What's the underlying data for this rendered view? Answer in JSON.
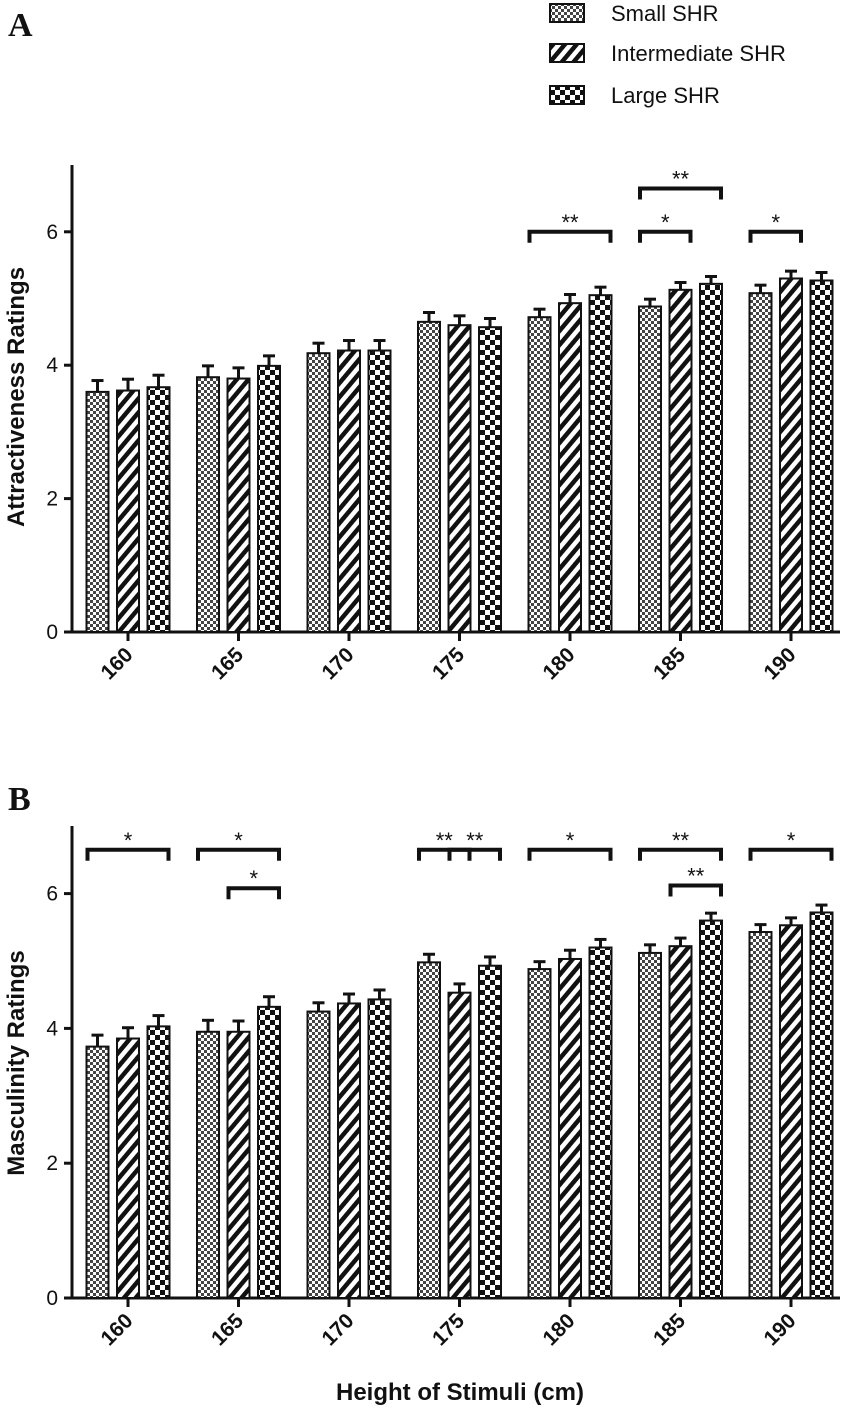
{
  "colors": {
    "ink": "#111111",
    "background": "#ffffff"
  },
  "chart_data": [
    {
      "type": "bar",
      "panel": "A",
      "title": "",
      "xlabel": "",
      "ylabel": "Attractiveness Ratings",
      "ylim": [
        0,
        7
      ],
      "yticks": [
        0,
        2,
        4,
        6
      ],
      "categories": [
        "160",
        "165",
        "170",
        "175",
        "180",
        "185",
        "190"
      ],
      "series": [
        {
          "name": "Small SHR",
          "pattern": "dots",
          "values": [
            3.6,
            3.82,
            4.18,
            4.65,
            4.72,
            4.88,
            5.08
          ],
          "errors": [
            0.17,
            0.17,
            0.15,
            0.14,
            0.12,
            0.11,
            0.12
          ]
        },
        {
          "name": "Intermediate SHR",
          "pattern": "stripes",
          "values": [
            3.62,
            3.8,
            4.22,
            4.6,
            4.93,
            5.13,
            5.3
          ],
          "errors": [
            0.17,
            0.16,
            0.15,
            0.14,
            0.13,
            0.11,
            0.11
          ]
        },
        {
          "name": "Large SHR",
          "pattern": "checks",
          "values": [
            3.67,
            3.99,
            4.22,
            4.57,
            5.05,
            5.22,
            5.27
          ],
          "errors": [
            0.18,
            0.15,
            0.15,
            0.13,
            0.12,
            0.11,
            0.12
          ]
        }
      ],
      "significance": [
        {
          "category": "180",
          "from": "Small SHR",
          "to": "Large SHR",
          "level": 6.0,
          "label": "**"
        },
        {
          "category": "185",
          "from": "Small SHR",
          "to": "Intermediate SHR",
          "level": 6.0,
          "label": "*"
        },
        {
          "category": "185",
          "from": "Small SHR",
          "to": "Large SHR",
          "level": 6.65,
          "label": "**"
        },
        {
          "category": "190",
          "from": "Small SHR",
          "to": "Intermediate SHR",
          "level": 6.0,
          "label": "*"
        }
      ]
    },
    {
      "type": "bar",
      "panel": "B",
      "title": "",
      "xlabel": "Height of Stimuli (cm)",
      "ylabel": "Masculinity Ratings",
      "ylim": [
        0,
        7
      ],
      "yticks": [
        0,
        2,
        4,
        6
      ],
      "categories": [
        "160",
        "165",
        "170",
        "175",
        "180",
        "185",
        "190"
      ],
      "series": [
        {
          "name": "Small SHR",
          "pattern": "dots",
          "values": [
            3.73,
            3.95,
            4.25,
            4.98,
            4.88,
            5.12,
            5.43
          ],
          "errors": [
            0.17,
            0.17,
            0.13,
            0.12,
            0.11,
            0.12,
            0.11
          ]
        },
        {
          "name": "Intermediate SHR",
          "pattern": "stripes",
          "values": [
            3.85,
            3.95,
            4.37,
            4.53,
            5.03,
            5.22,
            5.53
          ],
          "errors": [
            0.16,
            0.16,
            0.14,
            0.13,
            0.13,
            0.12,
            0.11
          ]
        },
        {
          "name": "Large SHR",
          "pattern": "checks",
          "values": [
            4.03,
            4.32,
            4.43,
            4.93,
            5.2,
            5.6,
            5.72
          ],
          "errors": [
            0.16,
            0.15,
            0.14,
            0.13,
            0.12,
            0.11,
            0.11
          ]
        }
      ],
      "significance": [
        {
          "category": "160",
          "from": "Small SHR",
          "to": "Large SHR",
          "level": 6.65,
          "label": "*"
        },
        {
          "category": "165",
          "from": "Small SHR",
          "to": "Large SHR",
          "level": 6.65,
          "label": "*"
        },
        {
          "category": "165",
          "from": "Intermediate SHR",
          "to": "Large SHR",
          "level": 6.08,
          "label": "*"
        },
        {
          "category": "175",
          "from": "Small SHR",
          "to": "Intermediate SHR",
          "level": 6.65,
          "label": "**"
        },
        {
          "category": "175",
          "from": "Intermediate SHR",
          "to": "Large SHR",
          "level": 6.65,
          "label": "**"
        },
        {
          "category": "180",
          "from": "Small SHR",
          "to": "Large SHR",
          "level": 6.65,
          "label": "*"
        },
        {
          "category": "185",
          "from": "Small SHR",
          "to": "Large SHR",
          "level": 6.65,
          "label": "**"
        },
        {
          "category": "185",
          "from": "Intermediate SHR",
          "to": "Large SHR",
          "level": 6.12,
          "label": "**"
        },
        {
          "category": "190",
          "from": "Small SHR",
          "to": "Large SHR",
          "level": 6.65,
          "label": "*"
        }
      ]
    }
  ]
}
